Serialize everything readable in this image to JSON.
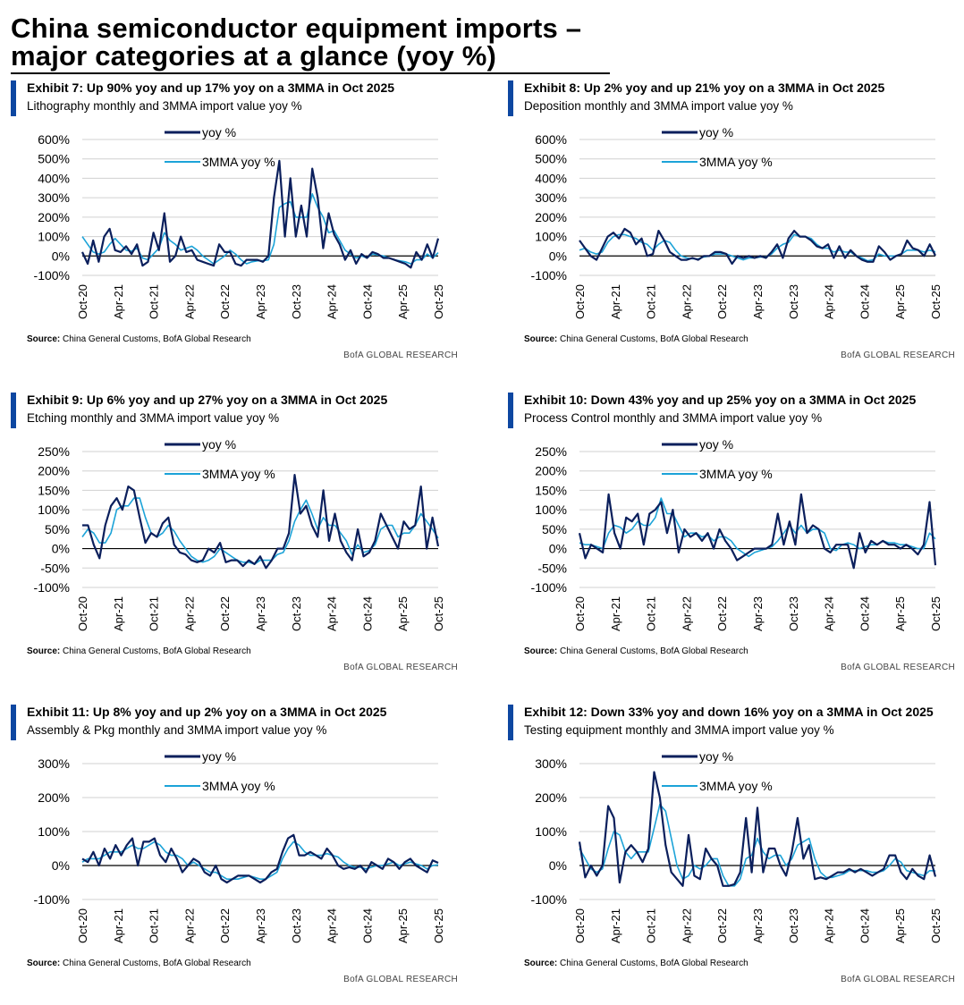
{
  "page": {
    "title_line1": "China semiconductor equipment imports –",
    "title_line2": "major categories at a glance (yoy %)"
  },
  "colors": {
    "yoy": "#0b1f5c",
    "mma": "#1ca3d8",
    "accent_bar": "#0d47a1",
    "grid": "#d0d0d0",
    "zero": "#000000"
  },
  "chart_data": [
    {
      "type": "line",
      "title": "Exhibit 7: Up 90% yoy and up 17% yoy on a 3MMA in Oct 2025",
      "subtitle": "Lithography monthly and 3MMA import value yoy %",
      "source_label": "Source:",
      "source": "China General Customs, BofA Global Research",
      "brand": "BofA GLOBAL RESEARCH",
      "legend": [
        "yoy %",
        "3MMA yoy %"
      ],
      "ylim": [
        -100,
        600
      ],
      "yticks": [
        -100,
        0,
        100,
        200,
        300,
        400,
        500,
        600
      ],
      "ytick_labels": [
        "-100%",
        "0%",
        "100%",
        "200%",
        "300%",
        "400%",
        "500%",
        "600%"
      ],
      "x_labels": [
        "Oct-20",
        "Apr-21",
        "Oct-21",
        "Apr-22",
        "Oct-22",
        "Apr-23",
        "Oct-23",
        "Apr-24",
        "Oct-24",
        "Apr-25",
        "Oct-25"
      ],
      "series": [
        {
          "name": "yoy %",
          "values": [
            20,
            -40,
            80,
            -30,
            100,
            140,
            30,
            20,
            50,
            10,
            60,
            -50,
            -30,
            120,
            30,
            220,
            -30,
            0,
            100,
            20,
            30,
            -20,
            -30,
            -40,
            -50,
            60,
            20,
            20,
            -40,
            -50,
            -20,
            -20,
            -20,
            -30,
            0,
            300,
            490,
            100,
            400,
            100,
            260,
            100,
            450,
            300,
            40,
            220,
            110,
            60,
            -20,
            30,
            -40,
            10,
            -10,
            20,
            10,
            -10,
            -10,
            -20,
            -30,
            -40,
            -60,
            20,
            -20,
            60,
            -10,
            90
          ]
        },
        {
          "name": "3MMA yoy %",
          "values": [
            100,
            60,
            20,
            10,
            20,
            60,
            90,
            60,
            30,
            25,
            40,
            -10,
            -20,
            10,
            40,
            120,
            80,
            60,
            30,
            40,
            50,
            30,
            0,
            -20,
            -40,
            -20,
            0,
            30,
            10,
            -20,
            -40,
            -30,
            -25,
            -25,
            -20,
            60,
            250,
            270,
            280,
            200,
            200,
            200,
            320,
            250,
            200,
            120,
            130,
            80,
            30,
            10,
            -10,
            0,
            -10,
            10,
            5,
            0,
            -10,
            -20,
            -25,
            -30,
            -40,
            -20,
            -20,
            10,
            -10,
            17
          ]
        }
      ]
    },
    {
      "type": "line",
      "title": "Exhibit 8: Up 2% yoy and up 21% yoy on a 3MMA in Oct 2025",
      "subtitle": "Deposition monthly and 3MMA import value yoy %",
      "source_label": "Source:",
      "source": "China General Customs, BofA Global Research",
      "brand": "BofA GLOBAL RESEARCH",
      "legend": [
        "yoy %",
        "3MMA yoy %"
      ],
      "ylim": [
        -100,
        600
      ],
      "yticks": [
        -100,
        0,
        100,
        200,
        300,
        400,
        500,
        600
      ],
      "ytick_labels": [
        "-100%",
        "0%",
        "100%",
        "200%",
        "300%",
        "400%",
        "500%",
        "600%"
      ],
      "x_labels": [
        "Oct-20",
        "Apr-21",
        "Oct-21",
        "Apr-22",
        "Oct-22",
        "Apr-23",
        "Oct-23",
        "Apr-24",
        "Oct-24",
        "Apr-25",
        "Oct-25"
      ],
      "series": [
        {
          "name": "yoy %",
          "values": [
            80,
            40,
            0,
            -20,
            40,
            100,
            120,
            90,
            140,
            120,
            60,
            90,
            0,
            10,
            130,
            80,
            20,
            0,
            -20,
            -20,
            -10,
            -20,
            0,
            0,
            20,
            20,
            10,
            -40,
            0,
            -10,
            0,
            -10,
            0,
            -10,
            20,
            60,
            -10,
            90,
            130,
            100,
            100,
            80,
            50,
            40,
            60,
            -10,
            50,
            -10,
            30,
            0,
            -20,
            -30,
            -30,
            50,
            20,
            -20,
            0,
            10,
            80,
            40,
            30,
            0,
            60,
            2
          ]
        },
        {
          "name": "3MMA yoy %",
          "values": [
            30,
            40,
            20,
            10,
            20,
            70,
            100,
            110,
            110,
            100,
            90,
            70,
            60,
            30,
            60,
            80,
            70,
            30,
            0,
            -10,
            -15,
            -15,
            -5,
            0,
            10,
            10,
            10,
            0,
            -10,
            -20,
            -10,
            -10,
            -5,
            -5,
            10,
            40,
            60,
            70,
            110,
            100,
            100,
            90,
            60,
            40,
            40,
            20,
            30,
            20,
            20,
            0,
            -10,
            -25,
            -20,
            10,
            0,
            0,
            0,
            10,
            30,
            30,
            30,
            20,
            30,
            21
          ]
        }
      ]
    },
    {
      "type": "line",
      "title": "Exhibit 9: Up 6% yoy and up 27% yoy on a 3MMA in Oct 2025",
      "subtitle": "Etching monthly and 3MMA import value yoy %",
      "source_label": "Source:",
      "source": "China General Customs, BofA Global Research",
      "brand": "BofA GLOBAL RESEARCH",
      "legend": [
        "yoy %",
        "3MMA yoy %"
      ],
      "ylim": [
        -100,
        250
      ],
      "yticks": [
        -100,
        -50,
        0,
        50,
        100,
        150,
        200,
        250
      ],
      "ytick_labels": [
        "-100%",
        "-50%",
        "0%",
        "50%",
        "100%",
        "150%",
        "200%",
        "250%"
      ],
      "x_labels": [
        "Oct-20",
        "Apr-21",
        "Oct-21",
        "Apr-22",
        "Oct-22",
        "Apr-23",
        "Oct-23",
        "Apr-24",
        "Oct-24",
        "Apr-25",
        "Oct-25"
      ],
      "series": [
        {
          "name": "yoy %",
          "values": [
            60,
            60,
            10,
            -25,
            60,
            110,
            130,
            100,
            160,
            150,
            80,
            15,
            40,
            30,
            65,
            80,
            10,
            -10,
            -15,
            -30,
            -35,
            -30,
            0,
            -10,
            15,
            -35,
            -30,
            -30,
            -45,
            -30,
            -40,
            -20,
            -50,
            -30,
            0,
            0,
            40,
            190,
            90,
            110,
            60,
            30,
            150,
            20,
            90,
            20,
            -10,
            -30,
            50,
            -20,
            -10,
            20,
            90,
            60,
            30,
            0,
            70,
            50,
            60,
            160,
            0,
            80,
            6
          ]
        },
        {
          "name": "3MMA yoy %",
          "values": [
            30,
            50,
            40,
            15,
            15,
            40,
            100,
            110,
            110,
            130,
            130,
            80,
            40,
            30,
            40,
            60,
            45,
            20,
            0,
            -20,
            -30,
            -35,
            -30,
            -20,
            0,
            -10,
            -20,
            -30,
            -35,
            -35,
            -40,
            -30,
            -30,
            -30,
            -15,
            -10,
            20,
            70,
            100,
            125,
            90,
            50,
            80,
            60,
            60,
            40,
            20,
            -15,
            10,
            -10,
            -5,
            10,
            50,
            60,
            60,
            30,
            40,
            40,
            60,
            90,
            70,
            50,
            27
          ]
        }
      ]
    },
    {
      "type": "line",
      "title": "Exhibit 10: Down 43% yoy and up 25% yoy on a 3MMA in Oct 2025",
      "subtitle": "Process Control monthly and 3MMA import value yoy %",
      "source_label": "Source:",
      "source": "China General Customs, BofA Global Research",
      "brand": "BofA GLOBAL RESEARCH",
      "legend": [
        "yoy %",
        "3MMA yoy %"
      ],
      "ylim": [
        -100,
        250
      ],
      "yticks": [
        -100,
        -50,
        0,
        50,
        100,
        150,
        200,
        250
      ],
      "ytick_labels": [
        "-100%",
        "-50%",
        "0%",
        "50%",
        "100%",
        "150%",
        "200%",
        "250%"
      ],
      "x_labels": [
        "Oct-20",
        "Apr-21",
        "Oct-21",
        "Apr-22",
        "Oct-22",
        "Apr-23",
        "Oct-23",
        "Apr-24",
        "Oct-24",
        "Apr-25",
        "Oct-25"
      ],
      "series": [
        {
          "name": "yoy %",
          "values": [
            40,
            -25,
            10,
            0,
            -10,
            140,
            40,
            0,
            80,
            70,
            90,
            10,
            90,
            100,
            120,
            40,
            100,
            -10,
            50,
            30,
            40,
            20,
            40,
            0,
            50,
            20,
            0,
            -30,
            -20,
            -10,
            0,
            0,
            0,
            10,
            90,
            10,
            70,
            10,
            140,
            40,
            60,
            50,
            0,
            -10,
            10,
            10,
            10,
            -50,
            40,
            -10,
            20,
            10,
            20,
            10,
            10,
            0,
            10,
            0,
            -15,
            10,
            120,
            -43
          ]
        },
        {
          "name": "3MMA yoy %",
          "values": [
            15,
            10,
            10,
            5,
            0,
            40,
            60,
            55,
            40,
            50,
            70,
            60,
            60,
            80,
            130,
            90,
            90,
            60,
            30,
            40,
            40,
            30,
            35,
            20,
            30,
            30,
            20,
            0,
            -10,
            -20,
            -10,
            -5,
            0,
            5,
            20,
            40,
            60,
            40,
            60,
            40,
            50,
            50,
            40,
            0,
            -5,
            10,
            15,
            10,
            0,
            5,
            10,
            10,
            20,
            15,
            15,
            10,
            10,
            5,
            0,
            0,
            40,
            25
          ]
        }
      ]
    },
    {
      "type": "line",
      "title": "Exhibit 11: Up 8% yoy and up 2% yoy on a 3MMA in Oct 2025",
      "subtitle": "Assembly & Pkg monthly and 3MMA import value yoy %",
      "source_label": "Source:",
      "source": "China General Customs, BofA Global Research",
      "brand": "BofA GLOBAL RESEARCH",
      "legend": [
        "yoy %",
        "3MMA yoy %"
      ],
      "ylim": [
        -100,
        300
      ],
      "yticks": [
        -100,
        0,
        100,
        200,
        300
      ],
      "ytick_labels": [
        "-100%",
        "0%",
        "100%",
        "200%",
        "300%"
      ],
      "x_labels": [
        "Oct-20",
        "Apr-21",
        "Oct-21",
        "Apr-22",
        "Oct-22",
        "Apr-23",
        "Oct-23",
        "Apr-24",
        "Oct-24",
        "Apr-25",
        "Oct-25"
      ],
      "series": [
        {
          "name": "yoy %",
          "values": [
            20,
            10,
            40,
            0,
            50,
            20,
            60,
            30,
            60,
            80,
            0,
            70,
            70,
            80,
            30,
            10,
            50,
            20,
            -20,
            0,
            20,
            10,
            -20,
            -30,
            0,
            -40,
            -50,
            -40,
            -30,
            -30,
            -30,
            -40,
            -50,
            -40,
            -20,
            -10,
            40,
            80,
            90,
            30,
            30,
            40,
            30,
            20,
            50,
            30,
            0,
            -10,
            -5,
            -10,
            0,
            -20,
            10,
            0,
            -10,
            20,
            10,
            -10,
            10,
            20,
            0,
            -10,
            -20,
            15,
            8
          ]
        },
        {
          "name": "3MMA yoy %",
          "values": [
            10,
            20,
            20,
            20,
            30,
            40,
            40,
            40,
            50,
            60,
            50,
            50,
            60,
            70,
            60,
            40,
            30,
            30,
            20,
            0,
            10,
            0,
            -10,
            -20,
            -20,
            -30,
            -40,
            -40,
            -40,
            -35,
            -30,
            -35,
            -40,
            -40,
            -30,
            -20,
            20,
            50,
            70,
            60,
            40,
            30,
            30,
            30,
            35,
            30,
            25,
            10,
            0,
            -5,
            -5,
            -10,
            -5,
            0,
            0,
            5,
            10,
            0,
            5,
            10,
            5,
            0,
            -10,
            0,
            2
          ]
        }
      ]
    },
    {
      "type": "line",
      "title": "Exhibit 12: Down 33% yoy and down 16% yoy on a 3MMA in Oct 2025",
      "subtitle": "Testing equipment monthly and 3MMA import value yoy %",
      "source_label": "Source:",
      "source": "China General Customs, BofA Global Research",
      "brand": "BofA GLOBAL RESEARCH",
      "legend": [
        "yoy %",
        "3MMA yoy %"
      ],
      "ylim": [
        -100,
        300
      ],
      "yticks": [
        -100,
        0,
        100,
        200,
        300
      ],
      "ytick_labels": [
        "-100%",
        "0%",
        "100%",
        "200%",
        "300%"
      ],
      "x_labels": [
        "Oct-20",
        "Apr-21",
        "Oct-21",
        "Apr-22",
        "Oct-22",
        "Apr-23",
        "Oct-23",
        "Apr-24",
        "Oct-24",
        "Apr-25",
        "Oct-25"
      ],
      "series": [
        {
          "name": "yoy %",
          "values": [
            70,
            -35,
            0,
            -30,
            0,
            175,
            140,
            -50,
            40,
            60,
            40,
            10,
            50,
            275,
            200,
            60,
            -20,
            -40,
            -60,
            90,
            -30,
            -40,
            50,
            20,
            0,
            -60,
            -60,
            -55,
            -20,
            140,
            -20,
            170,
            -20,
            50,
            50,
            0,
            -30,
            40,
            140,
            20,
            60,
            -40,
            -35,
            -40,
            -30,
            -20,
            -20,
            -10,
            -20,
            -10,
            -20,
            -30,
            -20,
            -10,
            30,
            30,
            -20,
            -40,
            -10,
            -30,
            -40,
            30,
            -33
          ]
        },
        {
          "name": "3MMA yoy %",
          "values": [
            50,
            20,
            -10,
            -20,
            -10,
            50,
            100,
            90,
            40,
            20,
            40,
            40,
            40,
            110,
            180,
            160,
            80,
            0,
            -40,
            -30,
            0,
            -10,
            0,
            20,
            20,
            -30,
            -60,
            -60,
            -40,
            20,
            30,
            80,
            40,
            20,
            30,
            30,
            0,
            20,
            60,
            70,
            80,
            20,
            -20,
            -35,
            -35,
            -30,
            -25,
            -15,
            -15,
            -15,
            -15,
            -20,
            -20,
            -15,
            0,
            20,
            10,
            -15,
            -20,
            -25,
            -30,
            -15,
            -16
          ]
        }
      ]
    }
  ]
}
